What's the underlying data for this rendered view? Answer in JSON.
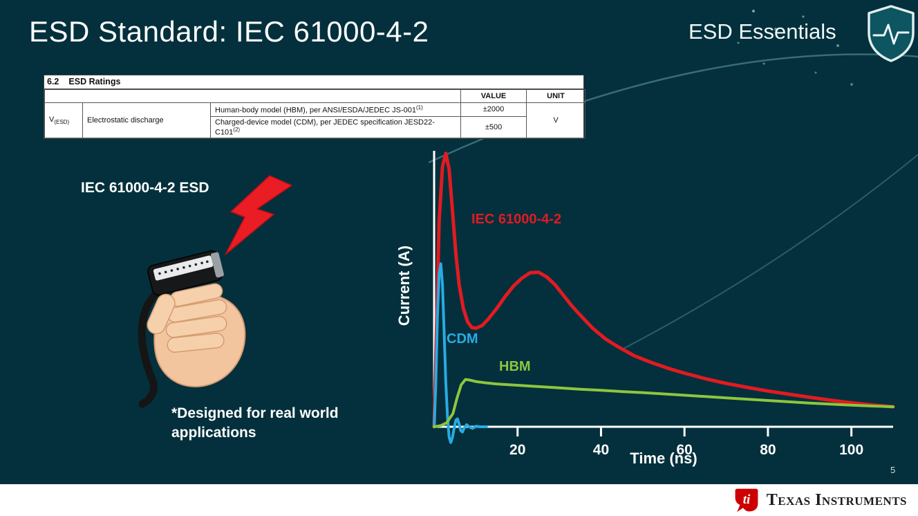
{
  "slide": {
    "title": "ESD Standard: IEC 61000-4-2",
    "series_brand": "ESD Essentials",
    "page_number": "5"
  },
  "icons": {
    "brand_shield": "shield-pulse-icon",
    "strike": "lightning-bolt-icon",
    "footer_logo": "ti-logo-icon"
  },
  "colors": {
    "background": "#03303c",
    "title_text": "#ffffff",
    "bolt_red": "#ea1c24",
    "footer_bg": "#ffffff",
    "axis": "#ffffff"
  },
  "ratings_table": {
    "section": "6.2",
    "section_title": "ESD Ratings",
    "col_headers": [
      "VALUE",
      "UNIT"
    ],
    "param_symbol": "V",
    "param_symbol_sub": "(ESD)",
    "param_name": "Electrostatic discharge",
    "rows": [
      {
        "condition": "Human-body model (HBM), per ANSI/ESDA/JEDEC JS-001",
        "condition_sup": "(1)",
        "value": "±2000"
      },
      {
        "condition": "Charged-device model (CDM), per JEDEC specification JESD22-C101",
        "condition_sup": "(2)",
        "value": "±500"
      }
    ],
    "unit": "V"
  },
  "left": {
    "caption": "IEC 61000-4-2 ESD",
    "note_line1": "*Designed for real world",
    "note_line2": "applications"
  },
  "footer": {
    "brand": "Texas Instruments"
  },
  "chart_data": {
    "type": "line",
    "title": "",
    "xlabel": "Time (ns)",
    "ylabel": "Current (A)",
    "x_ticks": [
      20,
      40,
      60,
      80,
      100
    ],
    "xlim": [
      0,
      110
    ],
    "ylim": [
      0,
      105
    ],
    "grid": false,
    "legend_position": "inline-labels",
    "y_units": "arbitrary (unlabeled axis)",
    "series": [
      {
        "name": "IEC 61000-4-2",
        "color": "#e11b22",
        "points": [
          [
            0,
            0
          ],
          [
            0.6,
            38
          ],
          [
            1.2,
            78
          ],
          [
            2,
            99
          ],
          [
            2.8,
            104
          ],
          [
            3.6,
            98
          ],
          [
            4.4,
            82
          ],
          [
            5.2,
            66
          ],
          [
            6,
            54
          ],
          [
            7,
            45
          ],
          [
            8,
            40
          ],
          [
            9,
            37.8
          ],
          [
            10,
            37.5
          ],
          [
            11.5,
            38.5
          ],
          [
            13,
            41
          ],
          [
            15,
            45
          ],
          [
            17,
            49.5
          ],
          [
            19,
            53.5
          ],
          [
            21,
            56.5
          ],
          [
            23,
            58.6
          ],
          [
            25,
            58.8
          ],
          [
            27,
            57
          ],
          [
            29,
            54
          ],
          [
            31,
            50
          ],
          [
            33,
            46
          ],
          [
            35,
            42.5
          ],
          [
            38,
            37.5
          ],
          [
            41,
            33.5
          ],
          [
            44,
            30.5
          ],
          [
            48,
            27
          ],
          [
            52,
            24.5
          ],
          [
            56,
            22.3
          ],
          [
            60,
            20.4
          ],
          [
            65,
            18.3
          ],
          [
            70,
            16.5
          ],
          [
            75,
            15
          ],
          [
            80,
            13.6
          ],
          [
            85,
            12.4
          ],
          [
            90,
            11.2
          ],
          [
            95,
            10.1
          ],
          [
            100,
            9.1
          ],
          [
            105,
            8.3
          ],
          [
            110,
            7.6
          ]
        ]
      },
      {
        "name": "CDM",
        "color": "#29abe2",
        "points": [
          [
            0,
            0
          ],
          [
            0.4,
            16
          ],
          [
            0.8,
            42
          ],
          [
            1.2,
            58
          ],
          [
            1.6,
            62
          ],
          [
            2,
            54
          ],
          [
            2.4,
            36
          ],
          [
            2.8,
            17
          ],
          [
            3.2,
            4
          ],
          [
            3.6,
            -4
          ],
          [
            4,
            -6
          ],
          [
            4.4,
            -4
          ],
          [
            4.8,
            -0.5
          ],
          [
            5.2,
            2.5
          ],
          [
            5.6,
            3
          ],
          [
            6,
            1
          ],
          [
            6.4,
            -1.5
          ],
          [
            6.8,
            -2
          ],
          [
            7.2,
            -0.5
          ],
          [
            7.8,
            0.8
          ],
          [
            8.4,
            0
          ],
          [
            9.2,
            -0.6
          ],
          [
            10,
            0.2
          ],
          [
            11,
            0
          ],
          [
            12.5,
            0
          ]
        ]
      },
      {
        "name": "HBM",
        "color": "#8dc63f",
        "points": [
          [
            0,
            0
          ],
          [
            1.5,
            0.4
          ],
          [
            3,
            1.5
          ],
          [
            4.5,
            5
          ],
          [
            5.5,
            11
          ],
          [
            6.5,
            16
          ],
          [
            7.5,
            18
          ],
          [
            8.5,
            17.8
          ],
          [
            10,
            17.2
          ],
          [
            12,
            16.8
          ],
          [
            15,
            16.3
          ],
          [
            20,
            15.8
          ],
          [
            25,
            15.3
          ],
          [
            30,
            14.8
          ],
          [
            35,
            14.3
          ],
          [
            40,
            13.9
          ],
          [
            45,
            13.4
          ],
          [
            50,
            13
          ],
          [
            55,
            12.5
          ],
          [
            60,
            12
          ],
          [
            65,
            11.5
          ],
          [
            70,
            11
          ],
          [
            75,
            10.5
          ],
          [
            80,
            10
          ],
          [
            85,
            9.5
          ],
          [
            90,
            9
          ],
          [
            95,
            8.6
          ],
          [
            100,
            8.2
          ],
          [
            105,
            7.9
          ],
          [
            110,
            7.6
          ]
        ]
      }
    ]
  }
}
